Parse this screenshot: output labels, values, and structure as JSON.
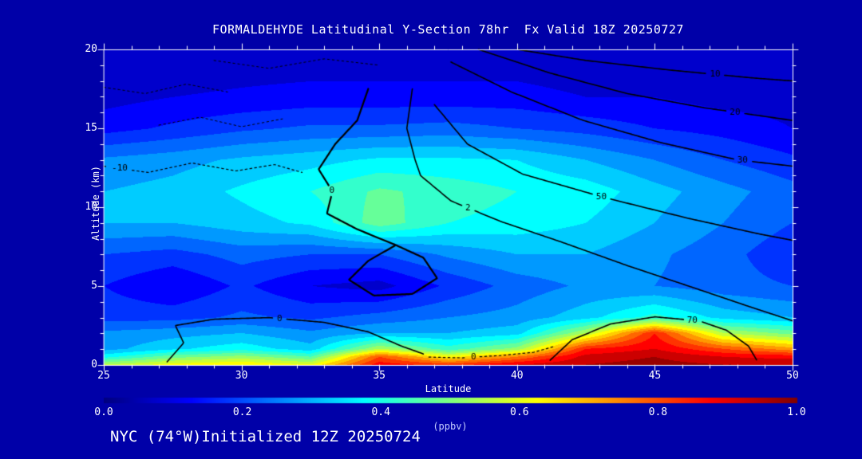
{
  "title": "FORMALDEHYDE Latitudinal Y-Section 78hr  Fx Valid 18Z 20250727",
  "footer": "NYC (74°W)Initialized 12Z 20250724",
  "colors": {
    "background": "#0000a8",
    "text": "#ffffff",
    "contour": "#000000",
    "unit_label": "#c4ccff",
    "axis": "#ffffff"
  },
  "chart_data": {
    "type": "heatmap",
    "title": "FORMALDEHYDE Latitudinal Y-Section 78hr  Fx Valid 18Z 20250727",
    "xlabel": "Latitude",
    "ylabel": "Altitude (km)",
    "xlim": [
      25,
      50
    ],
    "ylim": [
      0,
      20
    ],
    "x_ticks": [
      25,
      30,
      35,
      40,
      45,
      50
    ],
    "y_ticks": [
      0,
      5,
      10,
      15,
      20
    ],
    "minor_x_step": 1,
    "minor_y_step": 1,
    "colorbar": {
      "min": 0.0,
      "max": 1.0,
      "ticks": [
        "0.0",
        "0.2",
        "0.4",
        "0.6",
        "0.8",
        "1.0"
      ],
      "label": "(ppbv)",
      "colormap": "jet",
      "level_step": 0.05
    },
    "grid": {
      "lats": [
        25,
        27.5,
        30,
        32.5,
        35,
        37.5,
        40,
        42.5,
        45,
        47.5,
        50
      ],
      "alts": [
        0,
        0.5,
        1,
        2,
        3,
        5,
        7,
        9,
        11,
        13,
        15,
        17,
        20
      ],
      "values": [
        [
          0.55,
          0.62,
          0.65,
          0.6,
          0.88,
          0.82,
          0.9,
          0.95,
          0.97,
          0.95,
          0.95
        ],
        [
          0.38,
          0.48,
          0.52,
          0.45,
          0.8,
          0.62,
          0.75,
          0.92,
          0.95,
          0.9,
          0.88
        ],
        [
          0.28,
          0.34,
          0.38,
          0.32,
          0.55,
          0.42,
          0.52,
          0.85,
          0.9,
          0.8,
          0.72
        ],
        [
          0.26,
          0.28,
          0.3,
          0.26,
          0.3,
          0.3,
          0.33,
          0.55,
          0.85,
          0.55,
          0.48
        ],
        [
          0.18,
          0.18,
          0.21,
          0.19,
          0.22,
          0.25,
          0.27,
          0.33,
          0.42,
          0.33,
          0.3
        ],
        [
          0.15,
          0.1,
          0.16,
          0.1,
          0.08,
          0.16,
          0.22,
          0.26,
          0.25,
          0.22,
          0.2
        ],
        [
          0.2,
          0.18,
          0.22,
          0.2,
          0.2,
          0.26,
          0.3,
          0.3,
          0.26,
          0.22,
          0.16
        ],
        [
          0.3,
          0.3,
          0.33,
          0.36,
          0.48,
          0.4,
          0.38,
          0.35,
          0.3,
          0.25,
          0.2
        ],
        [
          0.3,
          0.32,
          0.36,
          0.4,
          0.46,
          0.43,
          0.4,
          0.38,
          0.32,
          0.27,
          0.22
        ],
        [
          0.26,
          0.28,
          0.31,
          0.33,
          0.36,
          0.36,
          0.35,
          0.3,
          0.25,
          0.2,
          0.16
        ],
        [
          0.13,
          0.16,
          0.19,
          0.21,
          0.21,
          0.22,
          0.2,
          0.18,
          0.15,
          0.13,
          0.1
        ],
        [
          0.08,
          0.1,
          0.11,
          0.12,
          0.12,
          0.12,
          0.12,
          0.1,
          0.1,
          0.08,
          0.08
        ],
        [
          0.05,
          0.05,
          0.06,
          0.06,
          0.06,
          0.06,
          0.06,
          0.05,
          0.05,
          0.05,
          0.05
        ]
      ]
    },
    "contours": [
      {
        "label": "-10",
        "dotted": true,
        "w": 1.2,
        "label_t": 0.08,
        "points": [
          [
            25,
            12.6
          ],
          [
            26.6,
            12.2
          ],
          [
            28.2,
            12.8
          ],
          [
            29.8,
            12.3
          ],
          [
            31.2,
            12.7
          ],
          [
            32.2,
            12.2
          ]
        ]
      },
      {
        "label": "",
        "dotted": true,
        "w": 1.0,
        "points": [
          [
            25,
            17.6
          ],
          [
            26.5,
            17.2
          ],
          [
            28,
            17.8
          ],
          [
            29.5,
            17.3
          ]
        ]
      },
      {
        "label": "",
        "dotted": true,
        "w": 1.0,
        "points": [
          [
            29,
            19.3
          ],
          [
            31,
            18.8
          ],
          [
            33,
            19.4
          ],
          [
            35,
            19.0
          ]
        ]
      },
      {
        "label": "",
        "dotted": true,
        "w": 1.0,
        "points": [
          [
            27,
            15.2
          ],
          [
            28.5,
            15.7
          ],
          [
            30,
            15.1
          ],
          [
            31.5,
            15.6
          ]
        ]
      },
      {
        "label": "0",
        "dotted": false,
        "w": 2.2,
        "label_t": 0.28,
        "points": [
          [
            34.6,
            17.5
          ],
          [
            34.2,
            15.5
          ],
          [
            33.4,
            14
          ],
          [
            32.8,
            12.4
          ],
          [
            33.3,
            11
          ],
          [
            33.1,
            9.6
          ],
          [
            34.2,
            8.6
          ],
          [
            35.6,
            7.6
          ],
          [
            34.6,
            6.6
          ],
          [
            33.9,
            5.4
          ],
          [
            34.8,
            4.4
          ],
          [
            36.2,
            4.5
          ],
          [
            37.1,
            5.5
          ],
          [
            36.6,
            6.8
          ],
          [
            35.6,
            7.6
          ]
        ]
      },
      {
        "label": "0",
        "dotted": false,
        "w": 1.6,
        "label_t": 0.5,
        "points": [
          [
            27.3,
            0.2
          ],
          [
            27.9,
            1.4
          ],
          [
            27.6,
            2.5
          ],
          [
            29,
            2.9
          ],
          [
            31,
            3.0
          ],
          [
            33,
            2.7
          ],
          [
            34.6,
            2.1
          ],
          [
            35.8,
            1.2
          ],
          [
            36.6,
            0.7
          ]
        ]
      },
      {
        "label": "0",
        "dotted": true,
        "w": 1.2,
        "label_t": 0.35,
        "points": [
          [
            36.8,
            0.5
          ],
          [
            38,
            0.45
          ],
          [
            39.4,
            0.6
          ],
          [
            40.6,
            0.8
          ],
          [
            41.4,
            1.2
          ]
        ]
      },
      {
        "label": "2",
        "dotted": false,
        "w": 1.6,
        "label_t": 0.3,
        "points": [
          [
            36.2,
            17.5
          ],
          [
            36.0,
            15
          ],
          [
            36.3,
            13
          ],
          [
            36.5,
            12.0
          ],
          [
            37.6,
            10.4
          ],
          [
            39.4,
            9.1
          ],
          [
            41.6,
            7.8
          ],
          [
            44,
            6.3
          ],
          [
            46.4,
            4.9
          ],
          [
            48.6,
            3.6
          ],
          [
            50,
            2.8
          ]
        ]
      },
      {
        "label": "10",
        "dotted": false,
        "w": 1.6,
        "label_t": 0.72,
        "points": [
          [
            40,
            20
          ],
          [
            42.5,
            19.3
          ],
          [
            45.5,
            18.7
          ],
          [
            48.5,
            18.2
          ],
          [
            50,
            18.0
          ]
        ]
      },
      {
        "label": "20",
        "dotted": false,
        "w": 1.6,
        "label_t": 0.82,
        "points": [
          [
            38.6,
            20
          ],
          [
            41.2,
            18.5
          ],
          [
            44,
            17.2
          ],
          [
            46.8,
            16.3
          ],
          [
            49.2,
            15.7
          ],
          [
            50,
            15.5
          ]
        ]
      },
      {
        "label": "30",
        "dotted": false,
        "w": 1.6,
        "label_t": 0.86,
        "points": [
          [
            37.6,
            19.2
          ],
          [
            39.8,
            17.3
          ],
          [
            42.4,
            15.5
          ],
          [
            45.2,
            14.1
          ],
          [
            48,
            13.0
          ],
          [
            50,
            12.6
          ]
        ]
      },
      {
        "label": "50",
        "dotted": false,
        "w": 1.6,
        "label_t": 0.5,
        "points": [
          [
            37,
            16.5
          ],
          [
            38.2,
            14
          ],
          [
            40.2,
            12.1
          ],
          [
            43.2,
            10.6
          ],
          [
            46.2,
            9.3
          ],
          [
            48.8,
            8.3
          ],
          [
            50,
            7.9
          ]
        ]
      },
      {
        "label": "70",
        "dotted": false,
        "w": 1.6,
        "label_t": 0.66,
        "points": [
          [
            41.2,
            0.3
          ],
          [
            42,
            1.6
          ],
          [
            43.4,
            2.6
          ],
          [
            45,
            3.05
          ],
          [
            46.6,
            2.8
          ],
          [
            47.6,
            2.2
          ],
          [
            48.4,
            1.2
          ],
          [
            48.7,
            0.3
          ]
        ]
      }
    ]
  }
}
